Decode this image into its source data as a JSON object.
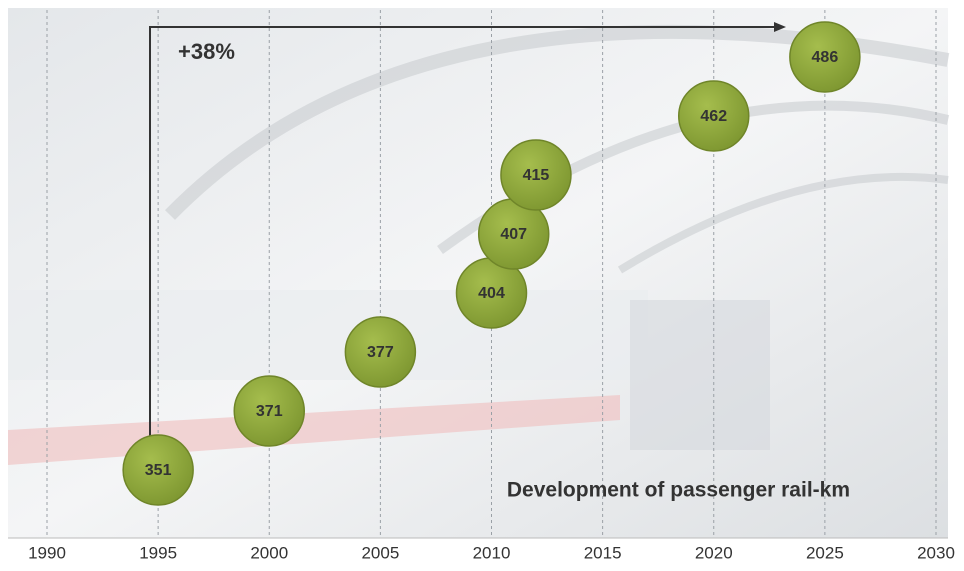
{
  "chart_data": {
    "type": "bubble",
    "title": "Development of passenger rail-km",
    "annotation": "+38%",
    "x": [
      1995,
      2000,
      2005,
      2010,
      2011,
      2012,
      2020,
      2025
    ],
    "values": [
      351,
      371,
      377,
      404,
      407,
      415,
      462,
      486
    ],
    "color": "#8da63b",
    "xlim": [
      1990,
      2030
    ],
    "xticks": [
      1990,
      1995,
      2000,
      2005,
      2010,
      2015,
      2020,
      2025,
      2030
    ],
    "grid": true
  }
}
